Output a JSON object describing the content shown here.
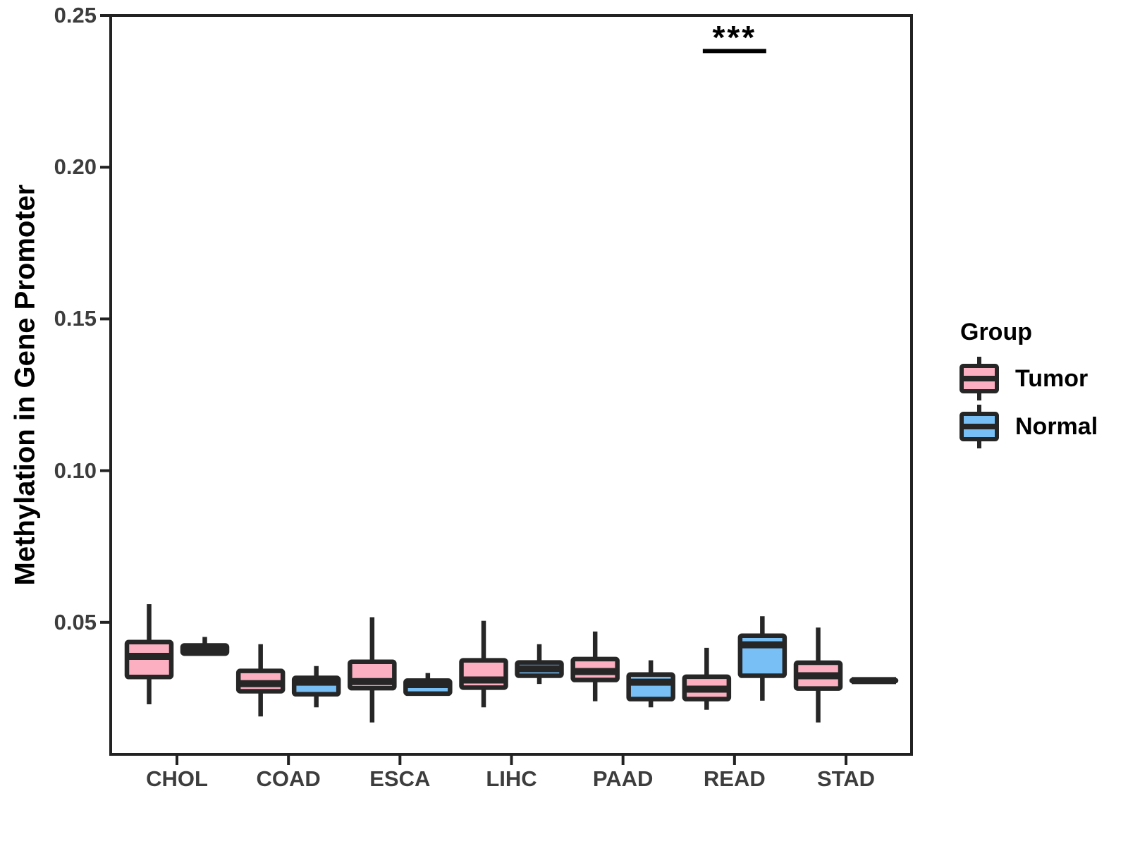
{
  "chart_data": {
    "type": "boxplot",
    "title": "",
    "xlabel": "",
    "ylabel": "Methylation in Gene Promoter",
    "categories": [
      "CHOL",
      "COAD",
      "ESCA",
      "LIHC",
      "PAAD",
      "READ",
      "STAD"
    ],
    "y_ticks": [
      {
        "value": 0.05,
        "label": "0.05"
      },
      {
        "value": 0.1,
        "label": "0.10"
      },
      {
        "value": 0.15,
        "label": "0.15"
      },
      {
        "value": 0.2,
        "label": "0.20"
      },
      {
        "value": 0.25,
        "label": "0.25"
      }
    ],
    "ylim": [
      0.0065,
      0.25
    ],
    "grid": "off",
    "legend_title": "Group",
    "legend_position": "right",
    "annotation": {
      "text": "***",
      "category": "READ",
      "line_y": 0.2383
    },
    "series": [
      {
        "name": "Tumor",
        "color": "#FBAFC1",
        "boxes": [
          {
            "category": "CHOL",
            "min": 0.023,
            "q1": 0.032,
            "median": 0.0388,
            "q3": 0.0435,
            "max": 0.056
          },
          {
            "category": "COAD",
            "min": 0.019,
            "q1": 0.0273,
            "median": 0.0298,
            "q3": 0.034,
            "max": 0.0428
          },
          {
            "category": "ESCA",
            "min": 0.017,
            "q1": 0.0283,
            "median": 0.0305,
            "q3": 0.037,
            "max": 0.0517
          },
          {
            "category": "LIHC",
            "min": 0.022,
            "q1": 0.0285,
            "median": 0.031,
            "q3": 0.0375,
            "max": 0.0505
          },
          {
            "category": "PAAD",
            "min": 0.024,
            "q1": 0.031,
            "median": 0.0338,
            "q3": 0.0379,
            "max": 0.047
          },
          {
            "category": "READ",
            "min": 0.0212,
            "q1": 0.0247,
            "median": 0.028,
            "q3": 0.0321,
            "max": 0.0416
          },
          {
            "category": "STAD",
            "min": 0.017,
            "q1": 0.0282,
            "median": 0.0324,
            "q3": 0.0367,
            "max": 0.0483
          }
        ]
      },
      {
        "name": "Normal",
        "color": "#77BFF5",
        "boxes": [
          {
            "category": "CHOL",
            "min": 0.0393,
            "q1": 0.0397,
            "median": 0.0407,
            "q3": 0.0424,
            "max": 0.0452
          },
          {
            "category": "COAD",
            "min": 0.022,
            "q1": 0.0263,
            "median": 0.0303,
            "q3": 0.0317,
            "max": 0.0356
          },
          {
            "category": "ESCA",
            "min": 0.0258,
            "q1": 0.0265,
            "median": 0.0295,
            "q3": 0.0308,
            "max": 0.0333
          },
          {
            "category": "LIHC",
            "min": 0.0297,
            "q1": 0.0324,
            "median": 0.0347,
            "q3": 0.0368,
            "max": 0.0428
          },
          {
            "category": "PAAD",
            "min": 0.022,
            "q1": 0.0247,
            "median": 0.0303,
            "q3": 0.0328,
            "max": 0.0375
          },
          {
            "category": "READ",
            "min": 0.0242,
            "q1": 0.0324,
            "median": 0.0426,
            "q3": 0.0456,
            "max": 0.052
          },
          {
            "category": "STAD",
            "min": 0.0305,
            "q1": 0.0306,
            "median": 0.0308,
            "q3": 0.031,
            "max": 0.031
          }
        ]
      }
    ]
  },
  "colors": {
    "box_stroke": "#262626",
    "panel_border": "#222222",
    "tick_text": "#3d3d3d",
    "axis_title_text": "#000000",
    "background": "#ffffff",
    "tumor_fill": "#FBAFC1",
    "normal_fill": "#77BFF5"
  }
}
